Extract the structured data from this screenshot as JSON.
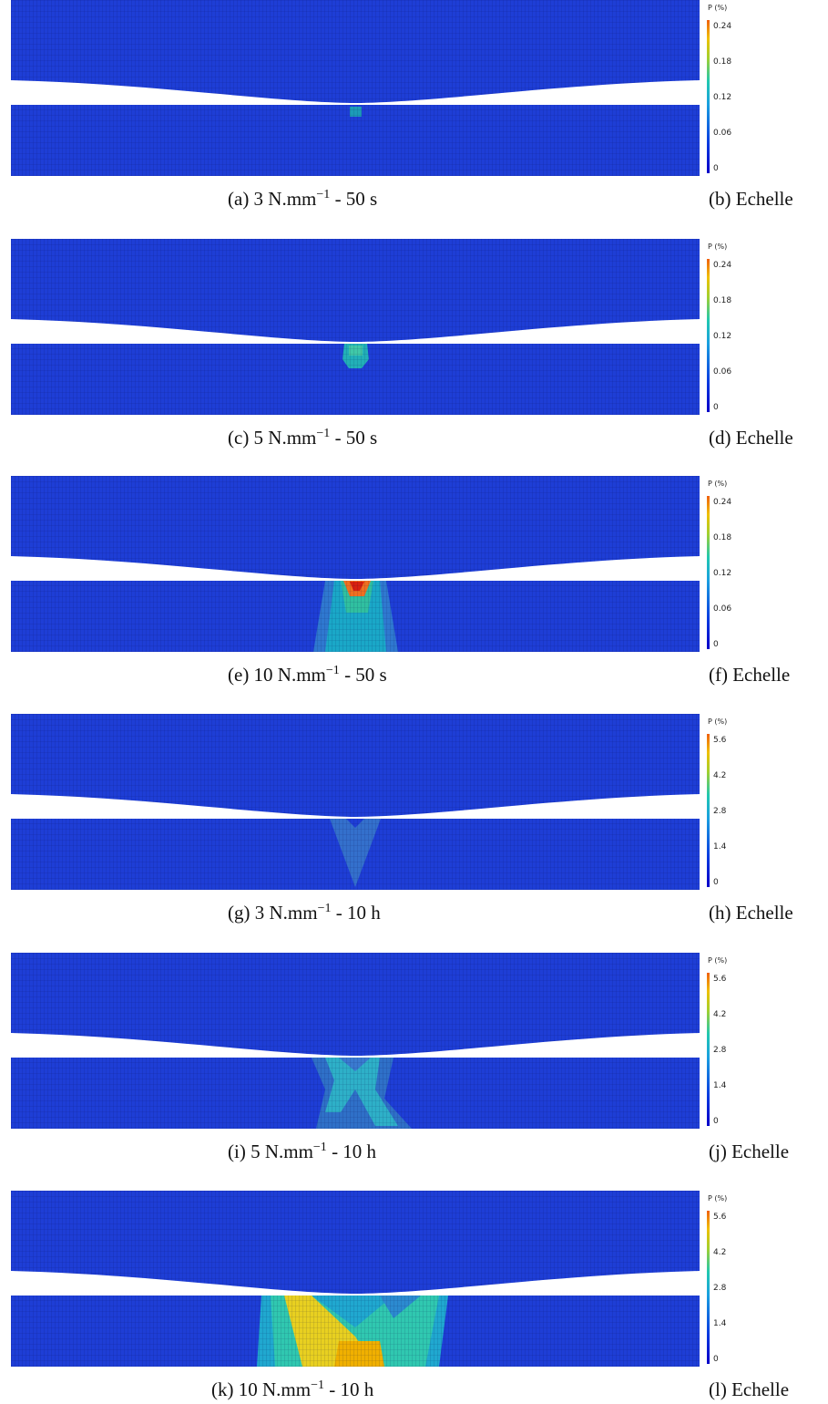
{
  "panels": [
    {
      "caption": {
        "before": "(a) 3 N.mm",
        "sup": "−1",
        "after": " - 50 s"
      },
      "scale": {
        "title": "P (%)",
        "ticks": [
          "0.24",
          "0.18",
          "0.12",
          "0.06",
          "0"
        ],
        "caption": "(b) Echelle"
      }
    },
    {
      "caption": {
        "before": "(c) 5 N.mm",
        "sup": "−1",
        "after": " - 50 s"
      },
      "scale": {
        "title": "P (%)",
        "ticks": [
          "0.24",
          "0.18",
          "0.12",
          "0.06",
          "0"
        ],
        "caption": "(d) Echelle"
      }
    },
    {
      "caption": {
        "before": "(e) 10 N.mm",
        "sup": "−1",
        "after": " - 50 s"
      },
      "scale": {
        "title": "P (%)",
        "ticks": [
          "0.24",
          "0.18",
          "0.12",
          "0.06",
          "0"
        ],
        "caption": "(f) Echelle"
      }
    },
    {
      "caption": {
        "before": "(g) 3 N.mm",
        "sup": "−1",
        "after": " - 10 h"
      },
      "scale": {
        "title": "P (%)",
        "ticks": [
          "5.6",
          "4.2",
          "2.8",
          "1.4",
          "0"
        ],
        "caption": "(h) Echelle"
      }
    },
    {
      "caption": {
        "before": "(i) 5 N.mm",
        "sup": "−1",
        "after": " - 10 h"
      },
      "scale": {
        "title": "P (%)",
        "ticks": [
          "5.6",
          "4.2",
          "2.8",
          "1.4",
          "0"
        ],
        "caption": "(j) Echelle"
      }
    },
    {
      "caption": {
        "before": "(k) 10 N.mm",
        "sup": "−1",
        "after": " - 10 h"
      },
      "scale": {
        "title": "P (%)",
        "ticks": [
          "5.6",
          "4.2",
          "2.8",
          "1.4",
          "0"
        ],
        "caption": "(l) Echelle"
      }
    }
  ]
}
